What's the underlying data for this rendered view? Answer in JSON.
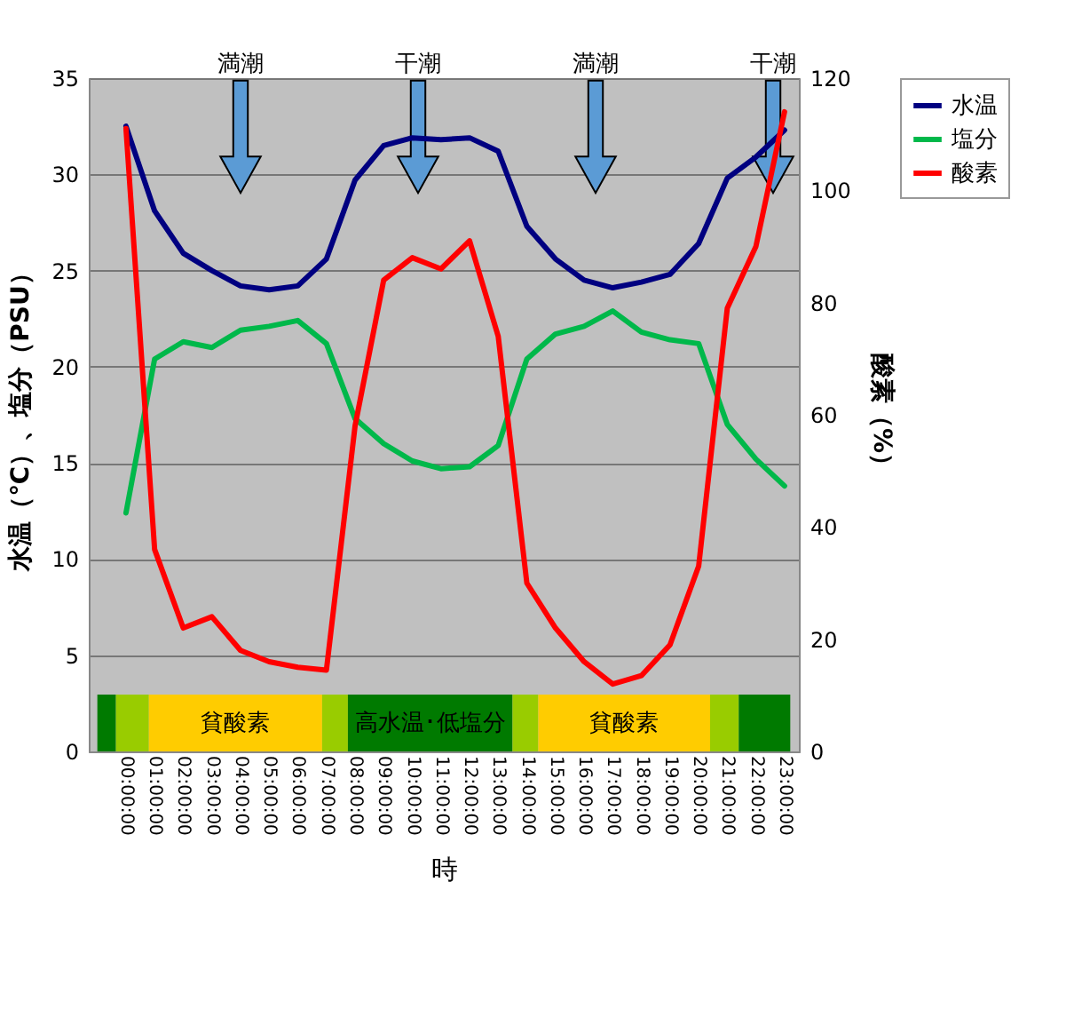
{
  "chart_data": {
    "type": "line",
    "xlabel": "時",
    "ylabel": "水温（℃）、塩分（PSU）",
    "y2label": "酸素（%）",
    "x": [
      0,
      1,
      2,
      3,
      4,
      5,
      6,
      7,
      8,
      9,
      10,
      11,
      12,
      13,
      14,
      15,
      16,
      17,
      18,
      19,
      20,
      21,
      22,
      23
    ],
    "xlim": [
      -1.3,
      23.5
    ],
    "xticks": [
      {
        "value": 0,
        "label": "00:00:00"
      },
      {
        "value": 1,
        "label": "01:00:00"
      },
      {
        "value": 2,
        "label": "02:00:00"
      },
      {
        "value": 3,
        "label": "03:00:00"
      },
      {
        "value": 4,
        "label": "04:00:00"
      },
      {
        "value": 5,
        "label": "05:00:00"
      },
      {
        "value": 6,
        "label": "06:00:00"
      },
      {
        "value": 7,
        "label": "07:00:00"
      },
      {
        "value": 8,
        "label": "08:00:00"
      },
      {
        "value": 9,
        "label": "09:00:00"
      },
      {
        "value": 10,
        "label": "10:00:00"
      },
      {
        "value": 11,
        "label": "11:00:00"
      },
      {
        "value": 12,
        "label": "12:00:00"
      },
      {
        "value": 13,
        "label": "13:00:00"
      },
      {
        "value": 14,
        "label": "14:00:00"
      },
      {
        "value": 15,
        "label": "15:00:00"
      },
      {
        "value": 16,
        "label": "16:00:00"
      },
      {
        "value": 17,
        "label": "17:00:00"
      },
      {
        "value": 18,
        "label": "18:00:00"
      },
      {
        "value": 19,
        "label": "19:00:00"
      },
      {
        "value": 20,
        "label": "20:00:00"
      },
      {
        "value": 21,
        "label": "21:00:00"
      },
      {
        "value": 22,
        "label": "22:00:00"
      },
      {
        "value": 23,
        "label": "23:00:00"
      }
    ],
    "ylim": [
      0,
      35
    ],
    "yticks": [
      0,
      5,
      10,
      15,
      20,
      25,
      30,
      35
    ],
    "y2lim": [
      0,
      120
    ],
    "y2ticks": [
      0,
      20,
      40,
      60,
      80,
      100,
      120
    ],
    "series": [
      {
        "name": "水温",
        "color": "#000080",
        "values": [
          32.5,
          28.1,
          25.9,
          25.0,
          24.2,
          24.0,
          24.2,
          25.6,
          29.7,
          31.5,
          31.9,
          31.8,
          31.9,
          31.2,
          27.3,
          25.6,
          24.5,
          24.1,
          24.4,
          24.8,
          26.4,
          29.8,
          30.9,
          32.3
        ]
      },
      {
        "name": "塩分",
        "color": "#00b84a",
        "values": [
          12.4,
          20.4,
          21.3,
          21.0,
          21.9,
          22.1,
          22.4,
          21.2,
          17.3,
          16.0,
          15.1,
          14.7,
          14.8,
          15.9,
          20.4,
          21.7,
          22.1,
          22.9,
          21.8,
          21.4,
          21.2,
          17.0,
          15.2,
          13.8
        ]
      },
      {
        "name": "酸素",
        "color": "#ff0000",
        "axis": "y2",
        "values": [
          111,
          36,
          22,
          24,
          18,
          16,
          15,
          14.5,
          58,
          84,
          88,
          86,
          91,
          74,
          30,
          22,
          16,
          12,
          13.5,
          19,
          33,
          79,
          90,
          114
        ]
      }
    ],
    "bands": [
      {
        "axis": "x",
        "from": -1,
        "to": -0.35,
        "color": "#007a00"
      },
      {
        "axis": "x",
        "from": -0.35,
        "to": 0.8,
        "color": "#99cc00"
      },
      {
        "axis": "x",
        "from": 0.8,
        "to": 6.85,
        "color": "#ffcc00",
        "label": "貧酸素"
      },
      {
        "axis": "x",
        "from": 6.85,
        "to": 7.75,
        "color": "#99cc00"
      },
      {
        "axis": "x",
        "from": 7.75,
        "to": 13.5,
        "color": "#007a00",
        "label": "高水温･低塩分"
      },
      {
        "axis": "x",
        "from": 13.5,
        "to": 14.4,
        "color": "#99cc00"
      },
      {
        "axis": "x",
        "from": 14.4,
        "to": 20.4,
        "color": "#ffcc00",
        "label": "貧酸素"
      },
      {
        "axis": "x",
        "from": 20.4,
        "to": 21.4,
        "color": "#99cc00"
      },
      {
        "axis": "x",
        "from": 21.4,
        "to": 23.2,
        "color": "#007a00"
      }
    ],
    "annotations": [
      "満潮",
      "干潮",
      "満潮",
      "干潮"
    ],
    "grid": "y",
    "legend": "right",
    "marker": "none",
    "line_style": "solid"
  }
}
